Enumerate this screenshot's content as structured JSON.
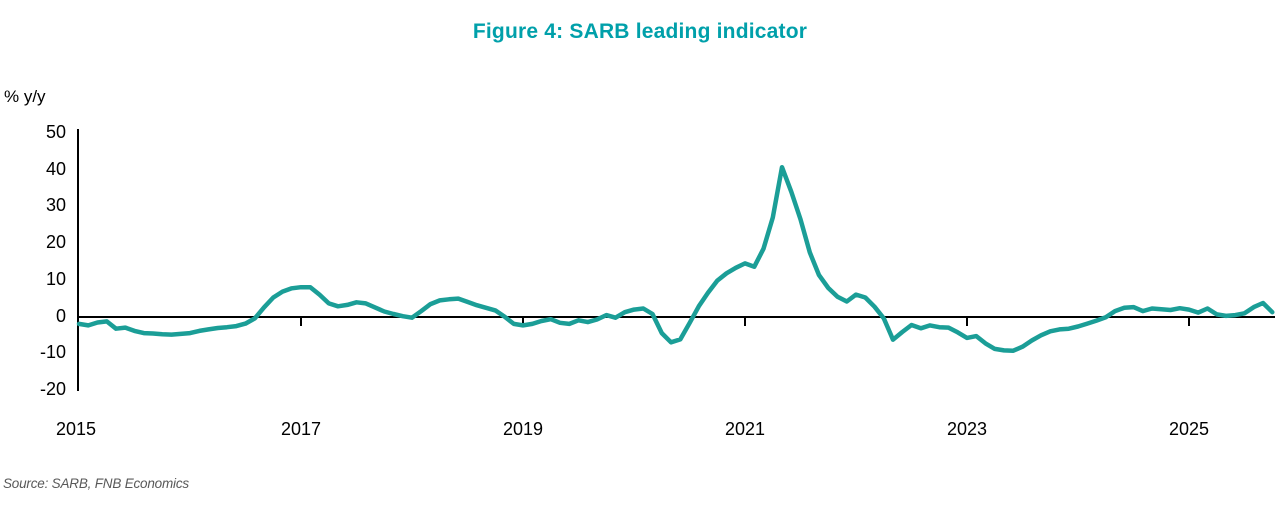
{
  "chart_data": {
    "type": "line",
    "title": "Figure 4: SARB leading indicator",
    "ylabel": "% y/y",
    "source": "Source: SARB, FNB Economics",
    "title_color": "#00A0AA",
    "axis_color": "#000000",
    "source_color": "#595959",
    "grid": false,
    "legend": "none",
    "ylim": [
      -20,
      50
    ],
    "y_ticks": [
      50,
      40,
      30,
      20,
      10,
      0,
      -10,
      -20
    ],
    "x_ticks": [
      2015,
      2017,
      2019,
      2021,
      2023,
      2025
    ],
    "x_start_year": 2015,
    "frequency": "monthly",
    "series": [
      {
        "name": "SARB leading indicator, % y/y",
        "color": "#1B9E97",
        "values": [
          -2.0,
          -2.4,
          -1.6,
          -1.3,
          -3.3,
          -3.0,
          -3.9,
          -4.5,
          -4.6,
          -4.8,
          -4.9,
          -4.7,
          -4.5,
          -3.9,
          -3.5,
          -3.1,
          -2.9,
          -2.6,
          -1.9,
          -0.5,
          2.5,
          5.2,
          6.8,
          7.7,
          8.0,
          8.0,
          6.0,
          3.6,
          2.8,
          3.2,
          3.9,
          3.6,
          2.5,
          1.4,
          0.7,
          0.1,
          -0.3,
          1.5,
          3.4,
          4.4,
          4.7,
          4.9,
          4.0,
          3.1,
          2.4,
          1.7,
          0.0,
          -2.0,
          -2.4,
          -2.0,
          -1.2,
          -0.7,
          -1.7,
          -2.0,
          -1.0,
          -1.5,
          -0.8,
          0.4,
          -0.3,
          1.2,
          1.9,
          2.2,
          0.7,
          -4.5,
          -7.0,
          -6.2,
          -1.8,
          2.8,
          6.5,
          9.8,
          11.8,
          13.3,
          14.5,
          13.6,
          18.5,
          27.0,
          40.7,
          34.0,
          26.5,
          17.5,
          11.3,
          7.8,
          5.4,
          4.1,
          6.0,
          5.2,
          2.7,
          -0.5,
          -6.3,
          -4.2,
          -2.3,
          -3.2,
          -2.4,
          -2.9,
          -3.0,
          -4.3,
          -5.8,
          -5.3,
          -7.3,
          -8.8,
          -9.2,
          -9.3,
          -8.2,
          -6.5,
          -5.1,
          -4.0,
          -3.5,
          -3.3,
          -2.7,
          -1.9,
          -1.1,
          -0.2,
          1.5,
          2.4,
          2.6,
          1.5,
          2.2,
          2.0,
          1.8,
          2.3,
          1.9,
          1.1,
          2.2,
          0.6,
          0.2,
          0.4,
          0.9,
          2.6,
          3.7,
          1.2
        ]
      }
    ]
  }
}
